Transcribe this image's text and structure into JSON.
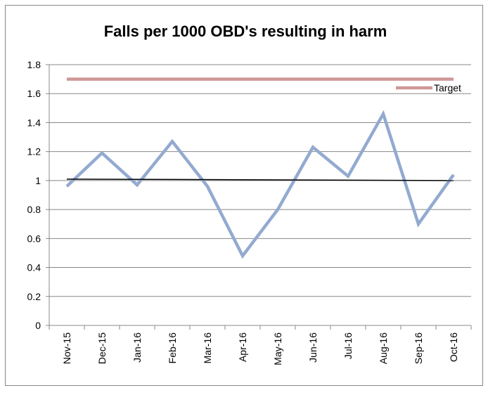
{
  "chart_data": {
    "type": "line",
    "title": "Falls per 1000 OBD's resulting in harm",
    "categories": [
      "Nov-15",
      "Dec-15",
      "Jan-16",
      "Feb-16",
      "Mar-16",
      "Apr-16",
      "May-16",
      "Jun-16",
      "Jul-16",
      "Aug-16",
      "Sep-16",
      "Oct-16"
    ],
    "series": [
      {
        "color": "#93aad0",
        "values": [
          0.96,
          1.19,
          0.97,
          1.27,
          0.96,
          0.48,
          0.8,
          1.23,
          1.03,
          1.46,
          0.7,
          1.04
        ]
      },
      {
        "name": "Target",
        "color": "#d09797",
        "values": [
          1.7,
          1.7,
          1.7,
          1.7,
          1.7,
          1.7,
          1.7,
          1.7,
          1.7,
          1.7,
          1.7,
          1.7
        ]
      }
    ],
    "trendline": {
      "color": "#000000",
      "values": [
        1.01,
        1.0
      ]
    },
    "ylim": [
      0,
      1.8
    ],
    "yticks": [
      0,
      0.2,
      0.4,
      0.6,
      0.8,
      1,
      1.2,
      1.4,
      1.6,
      1.8
    ],
    "grid": true,
    "legend": "top-right"
  }
}
